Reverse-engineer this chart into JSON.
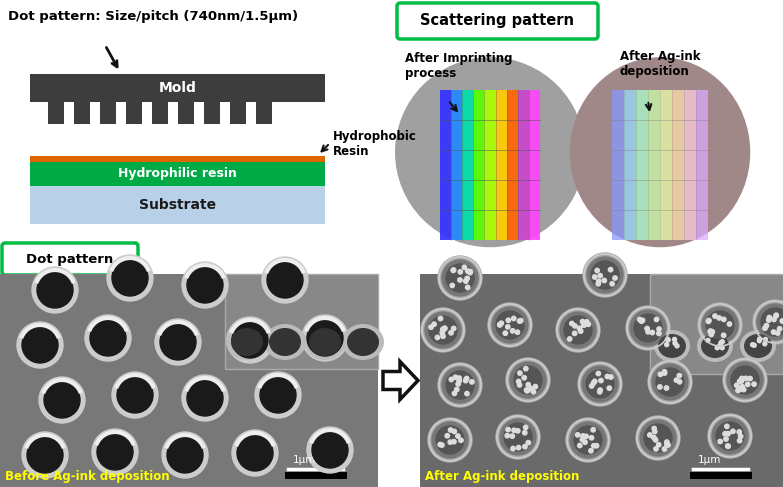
{
  "bg_color": "#ffffff",
  "title_dot_pattern": "Dot pattern: Size/pitch (740nm/1.5μm)",
  "label_mold": "Mold",
  "label_hydrophobic": "Hydrophobic\nResin",
  "label_hydrophilic": "Hydrophilic resin",
  "label_substrate": "Substrate",
  "label_scattering": "Scattering pattern",
  "label_after_imprint": "After Imprinting\nprocess",
  "label_after_agink": "After Ag-ink\ndeposition",
  "label_dot_pattern": "Dot pattern",
  "label_before": "Before Ag-ink deposition",
  "label_after": "After Ag-ink deposition",
  "label_1um": "1μm",
  "mold_color": "#3d3d3d",
  "hydrophilic_color": "#00aa44",
  "orange_line_color": "#dd6600",
  "substrate_color": "#b8d0e8",
  "green_border": "#00bb44",
  "arrow_color": "#111111",
  "yellow_text": "#ffff00",
  "sem_bg_left": "#787878",
  "sem_bg_right": "#6a6a6a"
}
